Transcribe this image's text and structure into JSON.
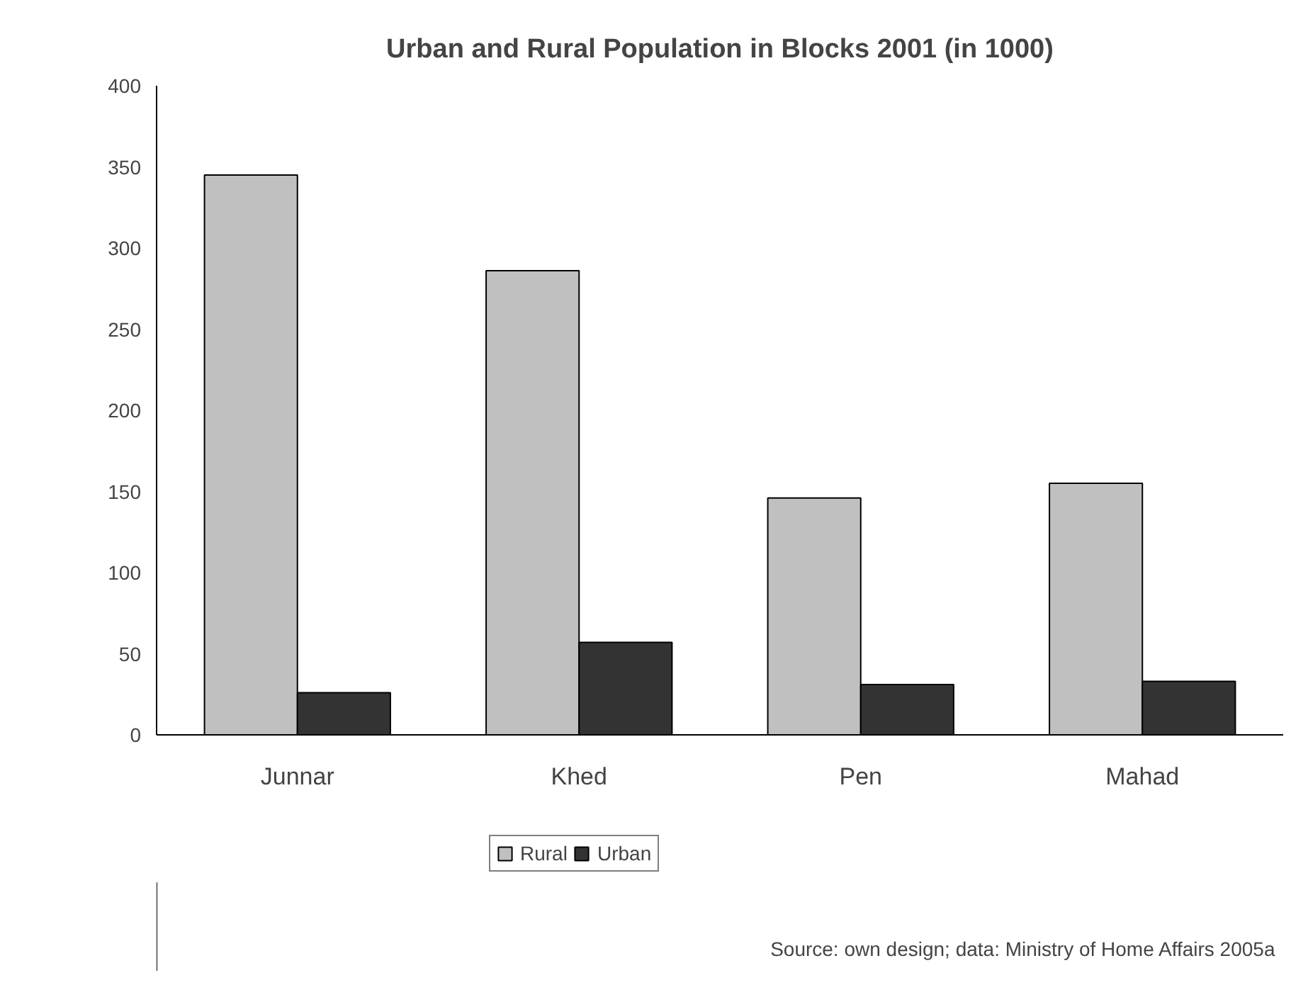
{
  "chart_data": {
    "type": "bar",
    "title": "Urban and Rural Population in Blocks 2001 (in 1000)",
    "categories": [
      "Junnar",
      "Khed",
      "Pen",
      "Mahad"
    ],
    "series": [
      {
        "name": "Rural",
        "color": "#c0c0c0",
        "values": [
          345,
          286,
          146,
          155
        ]
      },
      {
        "name": "Urban",
        "color": "#333333",
        "values": [
          26,
          57,
          31,
          33
        ]
      }
    ],
    "ylim": [
      0,
      400
    ],
    "yticks": [
      0,
      50,
      100,
      150,
      200,
      250,
      300,
      350,
      400
    ],
    "legend": "bottom",
    "annotations": [
      "Source: own design; data: Ministry of Home Affairs 2005a"
    ]
  }
}
